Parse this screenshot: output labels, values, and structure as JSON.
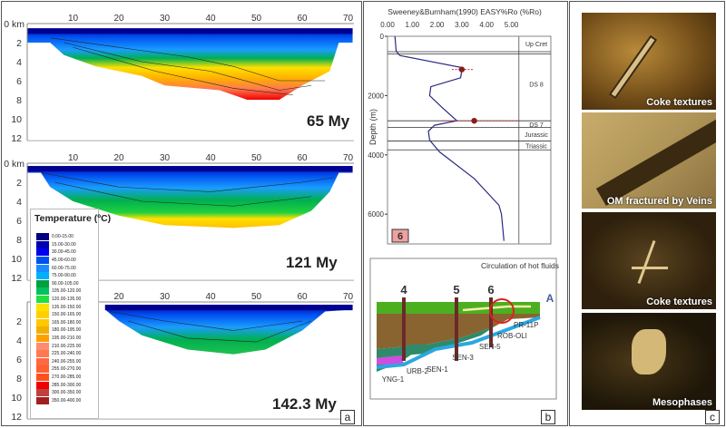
{
  "panel_a": {
    "label": "a",
    "x_ticks": [
      "10",
      "20",
      "30",
      "40",
      "50",
      "60",
      "70"
    ],
    "depth_ticks": [
      "0 km",
      "2",
      "4",
      "6",
      "8",
      "10",
      "12"
    ],
    "sections": [
      {
        "age": "65 My"
      },
      {
        "age": "121 My"
      },
      {
        "age": "142.3 My"
      }
    ],
    "legend": {
      "title": "Temperature (ºC)",
      "entries": [
        {
          "label": "0.00-15.00",
          "color": "#000080"
        },
        {
          "label": "15.00-30.00",
          "color": "#0000b0"
        },
        {
          "label": "30.00-45.00",
          "color": "#0000f0"
        },
        {
          "label": "45.00-60.00",
          "color": "#0050f0"
        },
        {
          "label": "60.00-75.00",
          "color": "#1a8cff"
        },
        {
          "label": "75.00-90.00",
          "color": "#00b0ff"
        },
        {
          "label": "90.00-105.00",
          "color": "#00a040"
        },
        {
          "label": "105.00-120.00",
          "color": "#00c060"
        },
        {
          "label": "120.00-135.00",
          "color": "#20e040"
        },
        {
          "label": "135.00-150.00",
          "color": "#ffe000"
        },
        {
          "label": "150.00-165.00",
          "color": "#ffd000"
        },
        {
          "label": "165.00-180.00",
          "color": "#ffc800"
        },
        {
          "label": "180.00-195.00",
          "color": "#f0b000"
        },
        {
          "label": "195.00-210.00",
          "color": "#ffa000"
        },
        {
          "label": "210.00-225.00",
          "color": "#ff8c70"
        },
        {
          "label": "225.00-240.00",
          "color": "#ff7850"
        },
        {
          "label": "240.00-255.00",
          "color": "#ff6a40"
        },
        {
          "label": "255.00-270.00",
          "color": "#ff6030"
        },
        {
          "label": "270.00-285.00",
          "color": "#ff5020"
        },
        {
          "label": "285.00-300.00",
          "color": "#f00000"
        },
        {
          "label": "300.00-350.00",
          "color": "#c04040"
        },
        {
          "label": "350.00-400.00",
          "color": "#a02020"
        }
      ]
    }
  },
  "panel_b": {
    "label": "b",
    "well_badge": "6",
    "chart_title": "Sweeney&Burnham(1990) EASY%Ro (%Ro)",
    "ro_ticks": [
      "0.00",
      "1.00",
      "2.00",
      "3.00",
      "4.00",
      "5.00"
    ],
    "depth_ticks": [
      "0",
      "2000",
      "4000",
      "6000"
    ],
    "ylabel": "Depth (m)",
    "formations": [
      "Up Cret",
      "DS 8",
      "DS 7",
      "Jurassic",
      "Triassic"
    ],
    "curve": [
      [
        0.3,
        0
      ],
      [
        0.35,
        500
      ],
      [
        0.5,
        650
      ],
      [
        2.95,
        1050
      ],
      [
        3.0,
        1150
      ],
      [
        2.95,
        1400
      ],
      [
        1.75,
        1700
      ],
      [
        1.7,
        2000
      ],
      [
        2.2,
        2400
      ],
      [
        2.8,
        2850
      ],
      [
        1.9,
        3000
      ],
      [
        1.65,
        3200
      ],
      [
        1.7,
        3500
      ],
      [
        2.1,
        3900
      ],
      [
        3.5,
        4800
      ],
      [
        4.5,
        5700
      ],
      [
        4.6,
        6000
      ],
      [
        4.7,
        6900
      ]
    ],
    "measured": [
      [
        3.0,
        1120
      ],
      [
        3.5,
        2850
      ]
    ],
    "section": {
      "wells": [
        "4",
        "5",
        "6"
      ],
      "annotation": "Circulation of hot fluids",
      "end_label": "A",
      "samples": [
        "PR-11P",
        "ROB-OLI",
        "SEN-5",
        "SEN-3",
        "SEN-1",
        "URB-2",
        "YNG-1"
      ]
    }
  },
  "panel_c": {
    "label": "c",
    "photos": [
      {
        "caption": "Coke textures"
      },
      {
        "caption": "OM fractured by Veins"
      },
      {
        "caption": "Coke textures"
      },
      {
        "caption": "Mesophases"
      }
    ]
  }
}
